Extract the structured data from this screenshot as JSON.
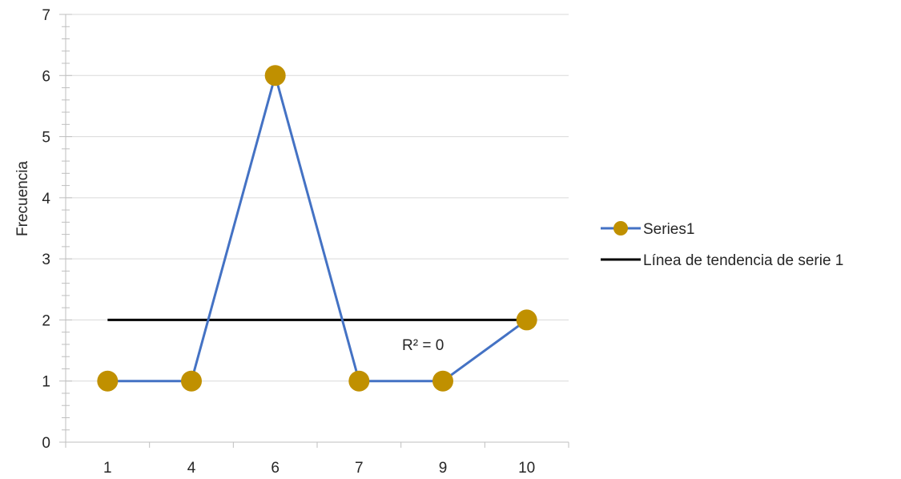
{
  "chart_data": {
    "type": "line",
    "categories": [
      "1",
      "4",
      "6",
      "7",
      "9",
      "10"
    ],
    "ylabel": "Frecuencia",
    "ylim": [
      0,
      7
    ],
    "yticks": [
      "0",
      "1",
      "2",
      "3",
      "4",
      "5",
      "6",
      "7"
    ],
    "grid": true,
    "legend_position": "right",
    "series": [
      {
        "name": "Series1",
        "values": [
          1,
          1,
          6,
          1,
          1,
          2
        ],
        "line_color": "#4472C4",
        "marker_color": "#C09000"
      }
    ],
    "trendline": {
      "name": "Línea de tendencia de serie 1",
      "values": [
        2,
        2
      ],
      "color": "#000000",
      "annotation": "R² = 0"
    }
  }
}
